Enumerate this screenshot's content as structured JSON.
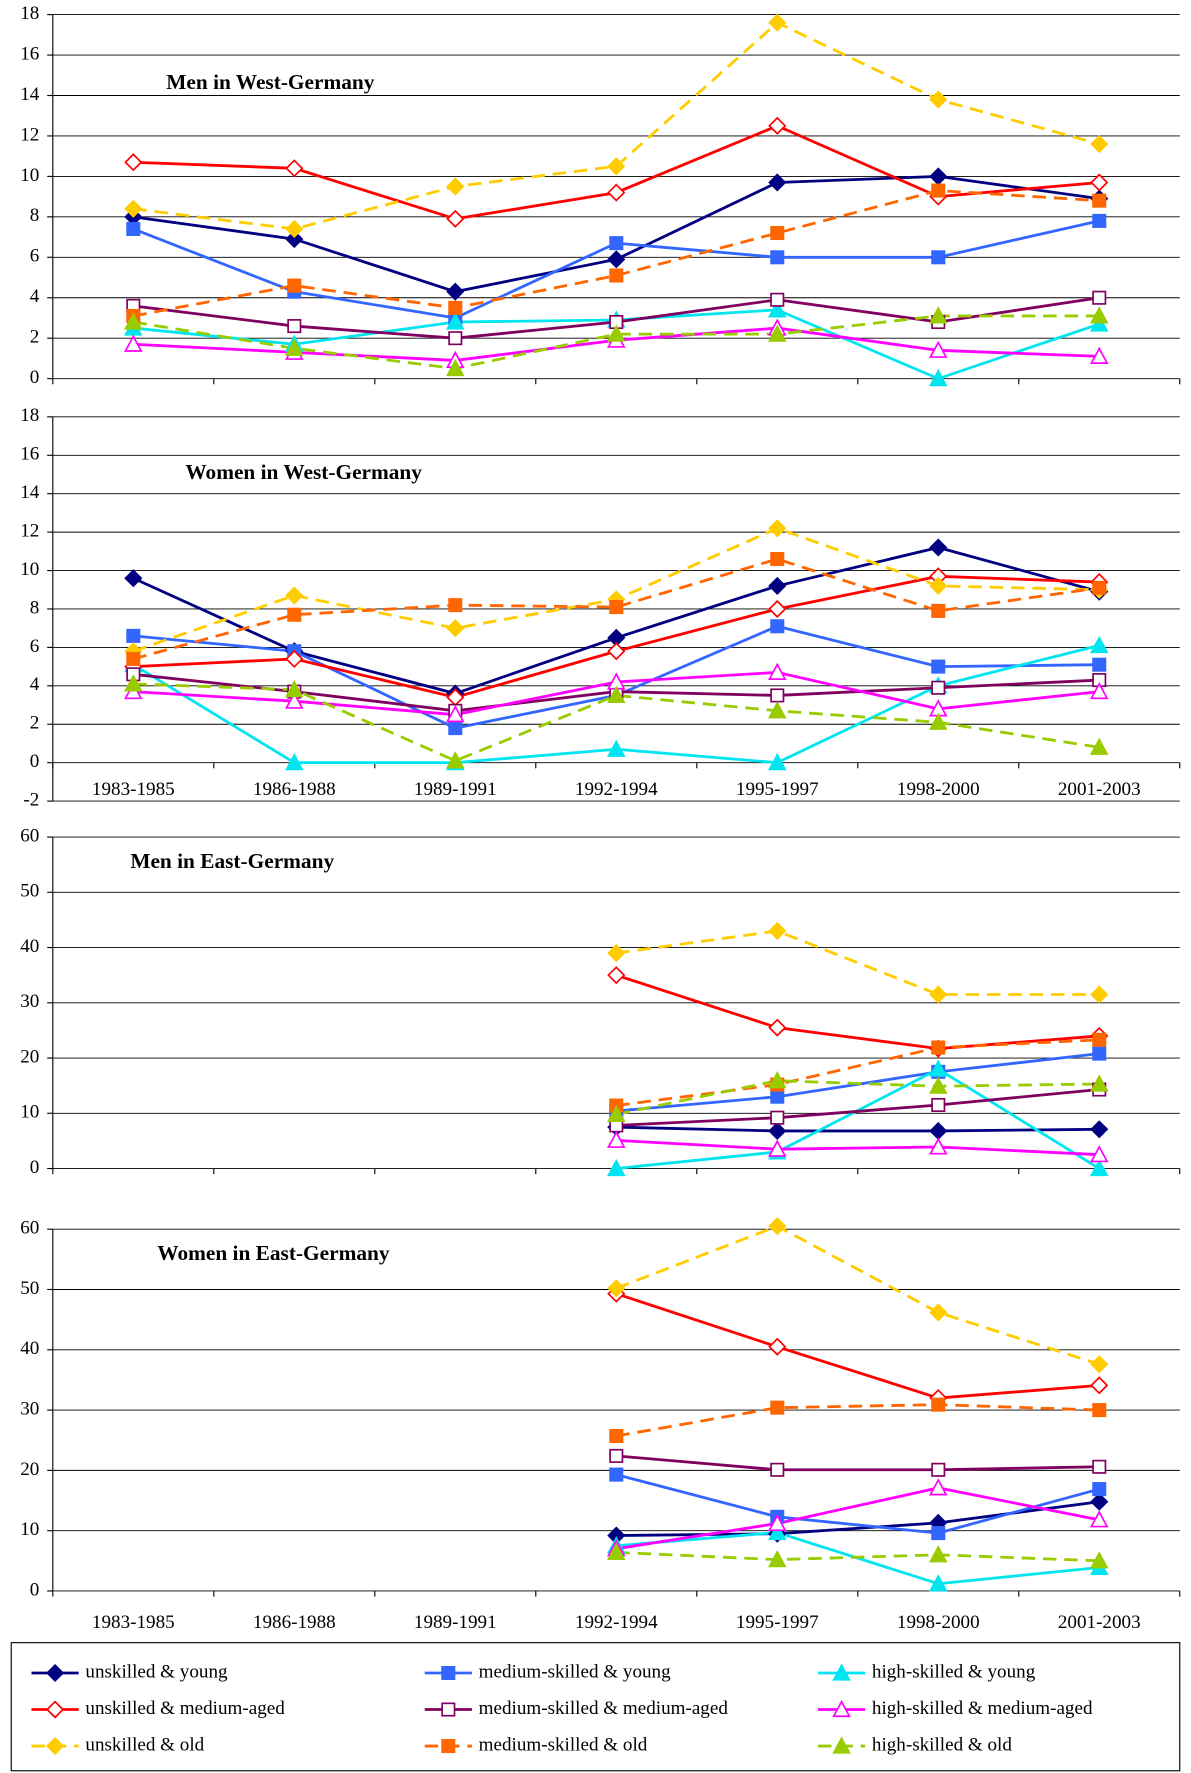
{
  "legend": {
    "entries": [
      {
        "name": "unskilled & young",
        "color": "#000080",
        "marker": "diamond",
        "open": false,
        "dashed": false
      },
      {
        "name": "medium-skilled & young",
        "color": "#3366ff",
        "marker": "square",
        "open": false,
        "dashed": false
      },
      {
        "name": "high-skilled & young",
        "color": "#00e5f0",
        "marker": "triangle",
        "open": false,
        "dashed": false
      },
      {
        "name": "unskilled & medium-aged",
        "color": "#ff0000",
        "marker": "diamond",
        "open": true,
        "dashed": false
      },
      {
        "name": "medium-skilled & medium-aged",
        "color": "#800060",
        "marker": "square",
        "open": true,
        "dashed": false
      },
      {
        "name": "high-skilled & medium-aged",
        "color": "#ff00ff",
        "marker": "triangle",
        "open": true,
        "dashed": false
      },
      {
        "name": "unskilled & old",
        "color": "#ffcc00",
        "marker": "diamond",
        "open": false,
        "dashed": true
      },
      {
        "name": "medium-skilled & old",
        "color": "#ff6600",
        "marker": "square",
        "open": false,
        "dashed": true
      },
      {
        "name": "high-skilled & old",
        "color": "#99cc00",
        "marker": "triangle",
        "open": false,
        "dashed": true
      }
    ]
  },
  "chart_data": [
    {
      "type": "line",
      "title": "Men in West-Germany",
      "ylim": [
        0,
        18
      ],
      "yticks": [
        0,
        2,
        4,
        6,
        8,
        10,
        12,
        14,
        16,
        18
      ],
      "grid": true,
      "categories": [
        "1983-1985",
        "1986-1988",
        "1989-1991",
        "1992-1994",
        "1995-1997",
        "1998-2000",
        "2001-2003"
      ],
      "show_categories": false,
      "series": [
        {
          "values": [
            8.0,
            6.9,
            4.3,
            5.9,
            9.7,
            10.0,
            8.9
          ]
        },
        {
          "values": [
            7.4,
            4.3,
            3.0,
            6.7,
            6.0,
            6.0,
            7.8
          ]
        },
        {
          "values": [
            2.5,
            1.7,
            2.8,
            2.9,
            3.4,
            0,
            2.7
          ]
        },
        {
          "values": [
            10.7,
            10.4,
            7.9,
            9.2,
            12.5,
            9.0,
            9.7
          ]
        },
        {
          "values": [
            3.6,
            2.6,
            2.0,
            2.8,
            3.9,
            2.8,
            4.0
          ]
        },
        {
          "values": [
            1.7,
            1.3,
            0.9,
            1.9,
            2.5,
            1.4,
            1.1
          ]
        },
        {
          "values": [
            8.4,
            7.4,
            9.5,
            10.5,
            17.6,
            13.8,
            11.6
          ]
        },
        {
          "values": [
            3.1,
            4.6,
            3.5,
            5.1,
            7.2,
            9.3,
            8.8
          ]
        },
        {
          "values": [
            2.8,
            1.5,
            0.5,
            2.2,
            2.2,
            3.1,
            3.1
          ]
        }
      ]
    },
    {
      "type": "line",
      "title": "Women in West-Germany",
      "ylim": [
        -2,
        18
      ],
      "yticks": [
        -2,
        0,
        2,
        4,
        6,
        8,
        10,
        12,
        14,
        16,
        18
      ],
      "grid": true,
      "categories": [
        "1983-1985",
        "1986-1988",
        "1989-1991",
        "1992-1994",
        "1995-1997",
        "1998-2000",
        "2001-2003"
      ],
      "show_categories": true,
      "series": [
        {
          "values": [
            9.6,
            5.8,
            3.6,
            6.5,
            9.2,
            11.2,
            8.9
          ]
        },
        {
          "values": [
            6.6,
            5.8,
            1.8,
            3.5,
            7.1,
            5.0,
            5.1
          ]
        },
        {
          "values": [
            5.1,
            0,
            0,
            0.7,
            0,
            4.0,
            6.1
          ]
        },
        {
          "values": [
            5.0,
            5.4,
            3.4,
            5.8,
            8.0,
            9.7,
            9.4
          ]
        },
        {
          "values": [
            4.6,
            3.7,
            2.7,
            3.7,
            3.5,
            3.9,
            4.3
          ]
        },
        {
          "values": [
            3.7,
            3.2,
            2.5,
            4.2,
            4.7,
            2.8,
            3.7
          ]
        },
        {
          "values": [
            5.8,
            8.7,
            7.0,
            8.5,
            12.2,
            9.2,
            9.0
          ]
        },
        {
          "values": [
            5.4,
            7.7,
            8.2,
            8.1,
            10.6,
            7.9,
            9.1
          ]
        },
        {
          "values": [
            4.1,
            3.8,
            0.1,
            3.5,
            2.7,
            2.1,
            0.8
          ]
        }
      ]
    },
    {
      "type": "line",
      "title": "Men in East-Germany",
      "ylim": [
        0,
        60
      ],
      "yticks": [
        0,
        10,
        20,
        30,
        40,
        50,
        60
      ],
      "grid": true,
      "categories": [
        "1983-1985",
        "1986-1988",
        "1989-1991",
        "1992-1994",
        "1995-1997",
        "1998-2000",
        "2001-2003"
      ],
      "show_categories": false,
      "series": [
        {
          "values": [
            null,
            null,
            null,
            7.5,
            6.8,
            6.8,
            7.1
          ]
        },
        {
          "values": [
            null,
            null,
            null,
            10.4,
            13.0,
            17.5,
            20.8
          ]
        },
        {
          "values": [
            null,
            null,
            null,
            0,
            3.0,
            18.0,
            0
          ]
        },
        {
          "values": [
            null,
            null,
            null,
            35,
            25.5,
            21.7,
            24
          ]
        },
        {
          "values": [
            null,
            null,
            null,
            7.8,
            9.2,
            11.5,
            14.3
          ]
        },
        {
          "values": [
            null,
            null,
            null,
            5.1,
            3.5,
            3.9,
            2.5
          ]
        },
        {
          "values": [
            null,
            null,
            null,
            39,
            43,
            31.5,
            31.5
          ]
        },
        {
          "values": [
            null,
            null,
            null,
            11.4,
            15.2,
            21.9,
            23.3
          ]
        },
        {
          "values": [
            null,
            null,
            null,
            9.8,
            15.9,
            14.9,
            15.3
          ]
        }
      ]
    },
    {
      "type": "line",
      "title": "Women in East-Germany",
      "ylim": [
        0,
        60
      ],
      "yticks": [
        0,
        10,
        20,
        30,
        40,
        50,
        60
      ],
      "grid": true,
      "categories": [
        "1983-1985",
        "1986-1988",
        "1989-1991",
        "1992-1994",
        "1995-1997",
        "1998-2000",
        "2001-2003"
      ],
      "show_categories": true,
      "series": [
        {
          "values": [
            null,
            null,
            null,
            9.2,
            9.5,
            11.3,
            14.8
          ]
        },
        {
          "values": [
            null,
            null,
            null,
            19.3,
            12.3,
            9.6,
            16.9
          ]
        },
        {
          "values": [
            null,
            null,
            null,
            7.5,
            9.7,
            1.2,
            3.9
          ]
        },
        {
          "values": [
            null,
            null,
            null,
            49.3,
            40.5,
            32.0,
            34.1
          ]
        },
        {
          "values": [
            null,
            null,
            null,
            22.4,
            20.1,
            20.1,
            20.6
          ]
        },
        {
          "values": [
            null,
            null,
            null,
            7.0,
            11.2,
            17.1,
            11.8
          ]
        },
        {
          "values": [
            null,
            null,
            null,
            50.2,
            60.5,
            46.2,
            37.6
          ]
        },
        {
          "values": [
            null,
            null,
            null,
            25.7,
            30.4,
            30.9,
            30.0
          ]
        },
        {
          "values": [
            null,
            null,
            null,
            6.4,
            5.2,
            6.0,
            5.0
          ]
        }
      ]
    }
  ]
}
